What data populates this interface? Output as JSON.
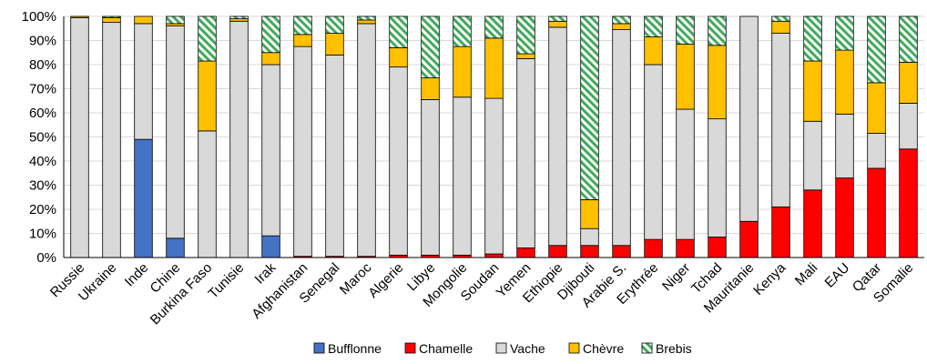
{
  "chart_data": {
    "type": "bar",
    "stacked": true,
    "normalized": true,
    "categories": [
      "Russie",
      "Ukraine",
      "Inde",
      "Chine",
      "Burkina Faso",
      "Tunisie",
      "Irak",
      "Afghanistan",
      "Senegal",
      "Maroc",
      "Algerie",
      "Libye",
      "Mongolie",
      "Soudan",
      "Yemen",
      "Ethiopie",
      "Djibouti",
      "Arabie S.",
      "Erythrée",
      "Niger",
      "Tchad",
      "Mauritanie",
      "Kenya",
      "Mali",
      "EAU",
      "Qatar",
      "Somalie"
    ],
    "series": [
      {
        "name": "Bufflonne",
        "color": "#4472c4",
        "pattern": "solid",
        "values": [
          0,
          0,
          49,
          8,
          0,
          0,
          9,
          0,
          0,
          0,
          0,
          0,
          0,
          0,
          0,
          0,
          0,
          0,
          0,
          0,
          0,
          0,
          0,
          0,
          0,
          0,
          0
        ]
      },
      {
        "name": "Chamelle",
        "color": "#ff0000",
        "pattern": "solid",
        "values": [
          0,
          0,
          0,
          0,
          0,
          0,
          0,
          0.5,
          0.5,
          0.5,
          1,
          1,
          1,
          1.5,
          4,
          5,
          5,
          5,
          7.5,
          7.5,
          8.5,
          15,
          21,
          28,
          33,
          37,
          45
        ]
      },
      {
        "name": "Vache",
        "color": "#d9d9d9",
        "pattern": "solid",
        "values": [
          99.5,
          97.5,
          48,
          88,
          52.5,
          98,
          71,
          87,
          83.5,
          96.5,
          78,
          64.5,
          65.5,
          64.5,
          78.5,
          90.5,
          7,
          89.5,
          72.5,
          54,
          49,
          85,
          72,
          28.5,
          26.5,
          14.5,
          19
        ]
      },
      {
        "name": "Chèvre",
        "color": "#ffc000",
        "pattern": "solid",
        "values": [
          0.5,
          2,
          3,
          1,
          29,
          1,
          5,
          5,
          9,
          1.5,
          8,
          9,
          21,
          25,
          2,
          2.5,
          12,
          2.5,
          11.5,
          27,
          30.5,
          0,
          5,
          25,
          26.5,
          21,
          17
        ]
      },
      {
        "name": "Brebis",
        "color": "#70c080",
        "pattern": "hatch",
        "values": [
          0,
          0.5,
          0,
          3,
          18.5,
          1,
          15,
          7.5,
          7,
          1.5,
          13,
          25.5,
          12.5,
          9,
          15.5,
          2,
          76,
          3,
          8.5,
          11.5,
          12,
          0,
          2,
          18.5,
          14,
          27.5,
          19
        ]
      }
    ],
    "y_ticks": [
      "0%",
      "10%",
      "20%",
      "30%",
      "40%",
      "50%",
      "60%",
      "70%",
      "80%",
      "90%",
      "100%"
    ],
    "ylim": [
      0,
      100
    ],
    "grid": true,
    "legend_position": "bottom",
    "title": "",
    "xlabel": "",
    "ylabel": ""
  }
}
